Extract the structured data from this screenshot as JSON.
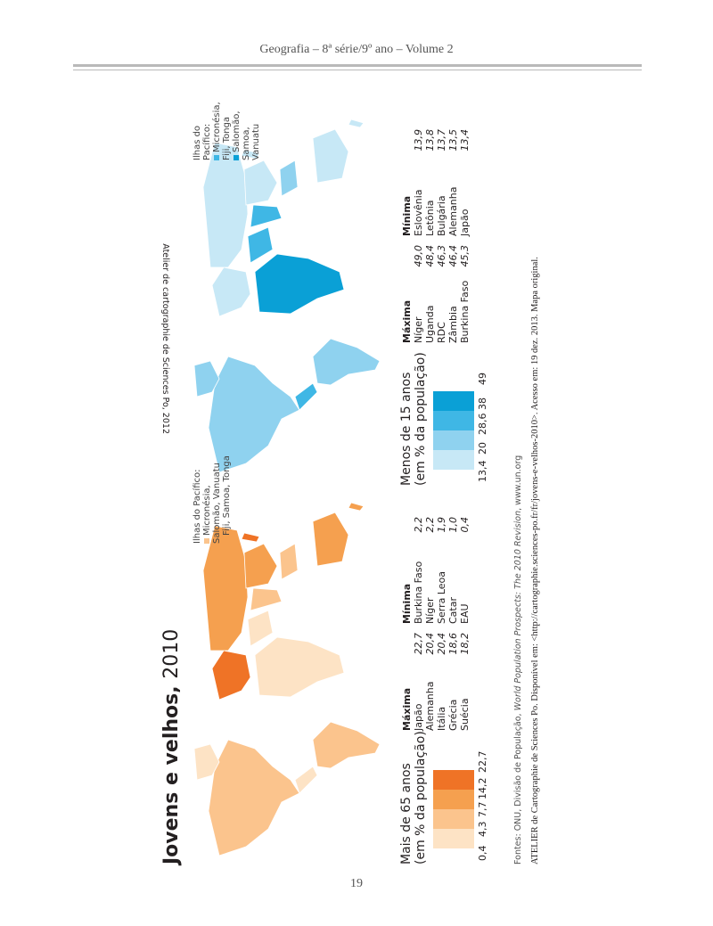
{
  "header": "Geografia – 8ª série/9º ano – Volume 2",
  "page_number": "19",
  "title": {
    "main": "Jovens e velhos,",
    "year": "2010"
  },
  "over65": {
    "legend_title": [
      "Mais de 65 anos",
      "(em % da população)"
    ],
    "ticks": [
      "0,4",
      "4,3",
      "7,7",
      "14,2",
      "22,7"
    ],
    "colors": [
      "#fde3c5",
      "#fbc48d",
      "#f5a04f",
      "#ef7326"
    ],
    "max_header": "Máxima",
    "max": [
      [
        "Japão",
        "22,7"
      ],
      [
        "Alemanha",
        "20,4"
      ],
      [
        "Itália",
        "20,4"
      ],
      [
        "Grécia",
        "18,6"
      ],
      [
        "Suécia",
        "18,2"
      ]
    ],
    "min_header": "Mínima",
    "min": [
      [
        "Burkina Faso",
        "2,2"
      ],
      [
        "Níger",
        "2,2"
      ],
      [
        "Serra Leoa",
        "1,9"
      ],
      [
        "Catar",
        "1,0"
      ],
      [
        "EAU",
        "0,4"
      ]
    ],
    "pacific_title": "Ilhas do Pacífico:",
    "pacific": [
      "Micronésia, Salomão, Vanuatu",
      "Fiji, Samoa, Tonga"
    ]
  },
  "under15": {
    "legend_title": [
      "Menos de 15 anos",
      "(em % da população)"
    ],
    "ticks": [
      "13,4",
      "20",
      "28,6",
      "38",
      "49"
    ],
    "colors": [
      "#c7e8f6",
      "#8fd2ef",
      "#3fb7e5",
      "#0aa0d6"
    ],
    "max_header": "Máxima",
    "max": [
      [
        "Níger",
        "49,0"
      ],
      [
        "Uganda",
        "48,4"
      ],
      [
        "RDC",
        "46,3"
      ],
      [
        "Zâmbia",
        "46,4"
      ],
      [
        "Burkina Faso",
        "45,3"
      ]
    ],
    "min_header": "Mínima",
    "min": [
      [
        "Eslovênia",
        "13,9"
      ],
      [
        "Letônia",
        "13,8"
      ],
      [
        "Bulgária",
        "13,7"
      ],
      [
        "Alemanha",
        "13,5"
      ],
      [
        "Japão",
        "13,4"
      ]
    ],
    "pacific_title": "Ilhas do Pacífico:",
    "pacific": [
      "Micronésia, Fiji, Tonga",
      "Salomão, Samoa, Vanuatu"
    ]
  },
  "sources": {
    "prefix": "Fontes: ONU, Divisão de População, ",
    "italic": "World Population Prospects: The 2010 Revision",
    "suffix": ", www.un.org"
  },
  "atelier": "ATELIER de Cartographie de Sciences Po. Disponível em: <http://cartographie.sciences-po.fr/fr/jovens-e-velhos-2010>. Acesso em: 19 dez. 2013. Mapa original.",
  "map_copyright": "Atelier de cartographie de Sciences Po, 2012"
}
